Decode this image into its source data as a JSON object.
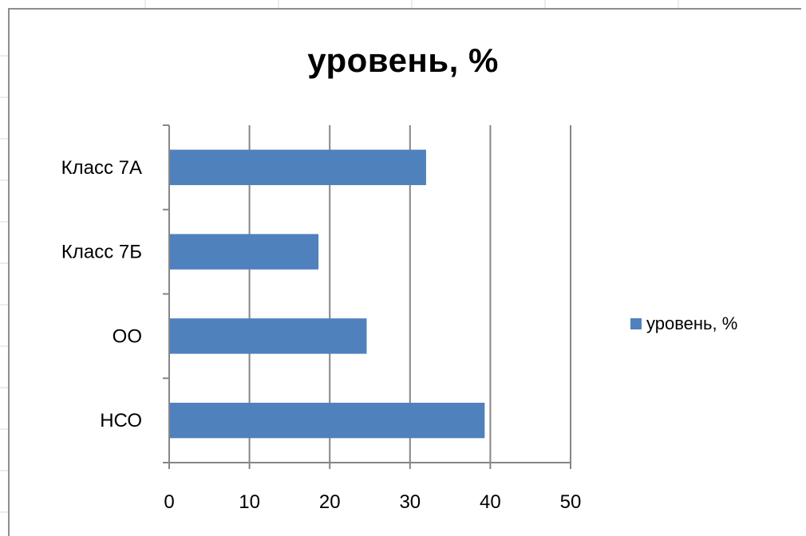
{
  "chart_data": {
    "type": "bar",
    "orientation": "horizontal",
    "title": "уровень, %",
    "categories": [
      "Класс 7А",
      "Класс 7Б",
      "ОО",
      "НСО"
    ],
    "series": [
      {
        "name": "уровень, %",
        "values": [
          32,
          18.6,
          24.6,
          39.3
        ],
        "color": "#4f81bd"
      }
    ],
    "xlim": [
      0,
      50
    ],
    "x_ticks": [
      "0",
      "10",
      "20",
      "30",
      "40",
      "50"
    ],
    "grid": "vertical major gridlines",
    "legend_position": "right"
  }
}
